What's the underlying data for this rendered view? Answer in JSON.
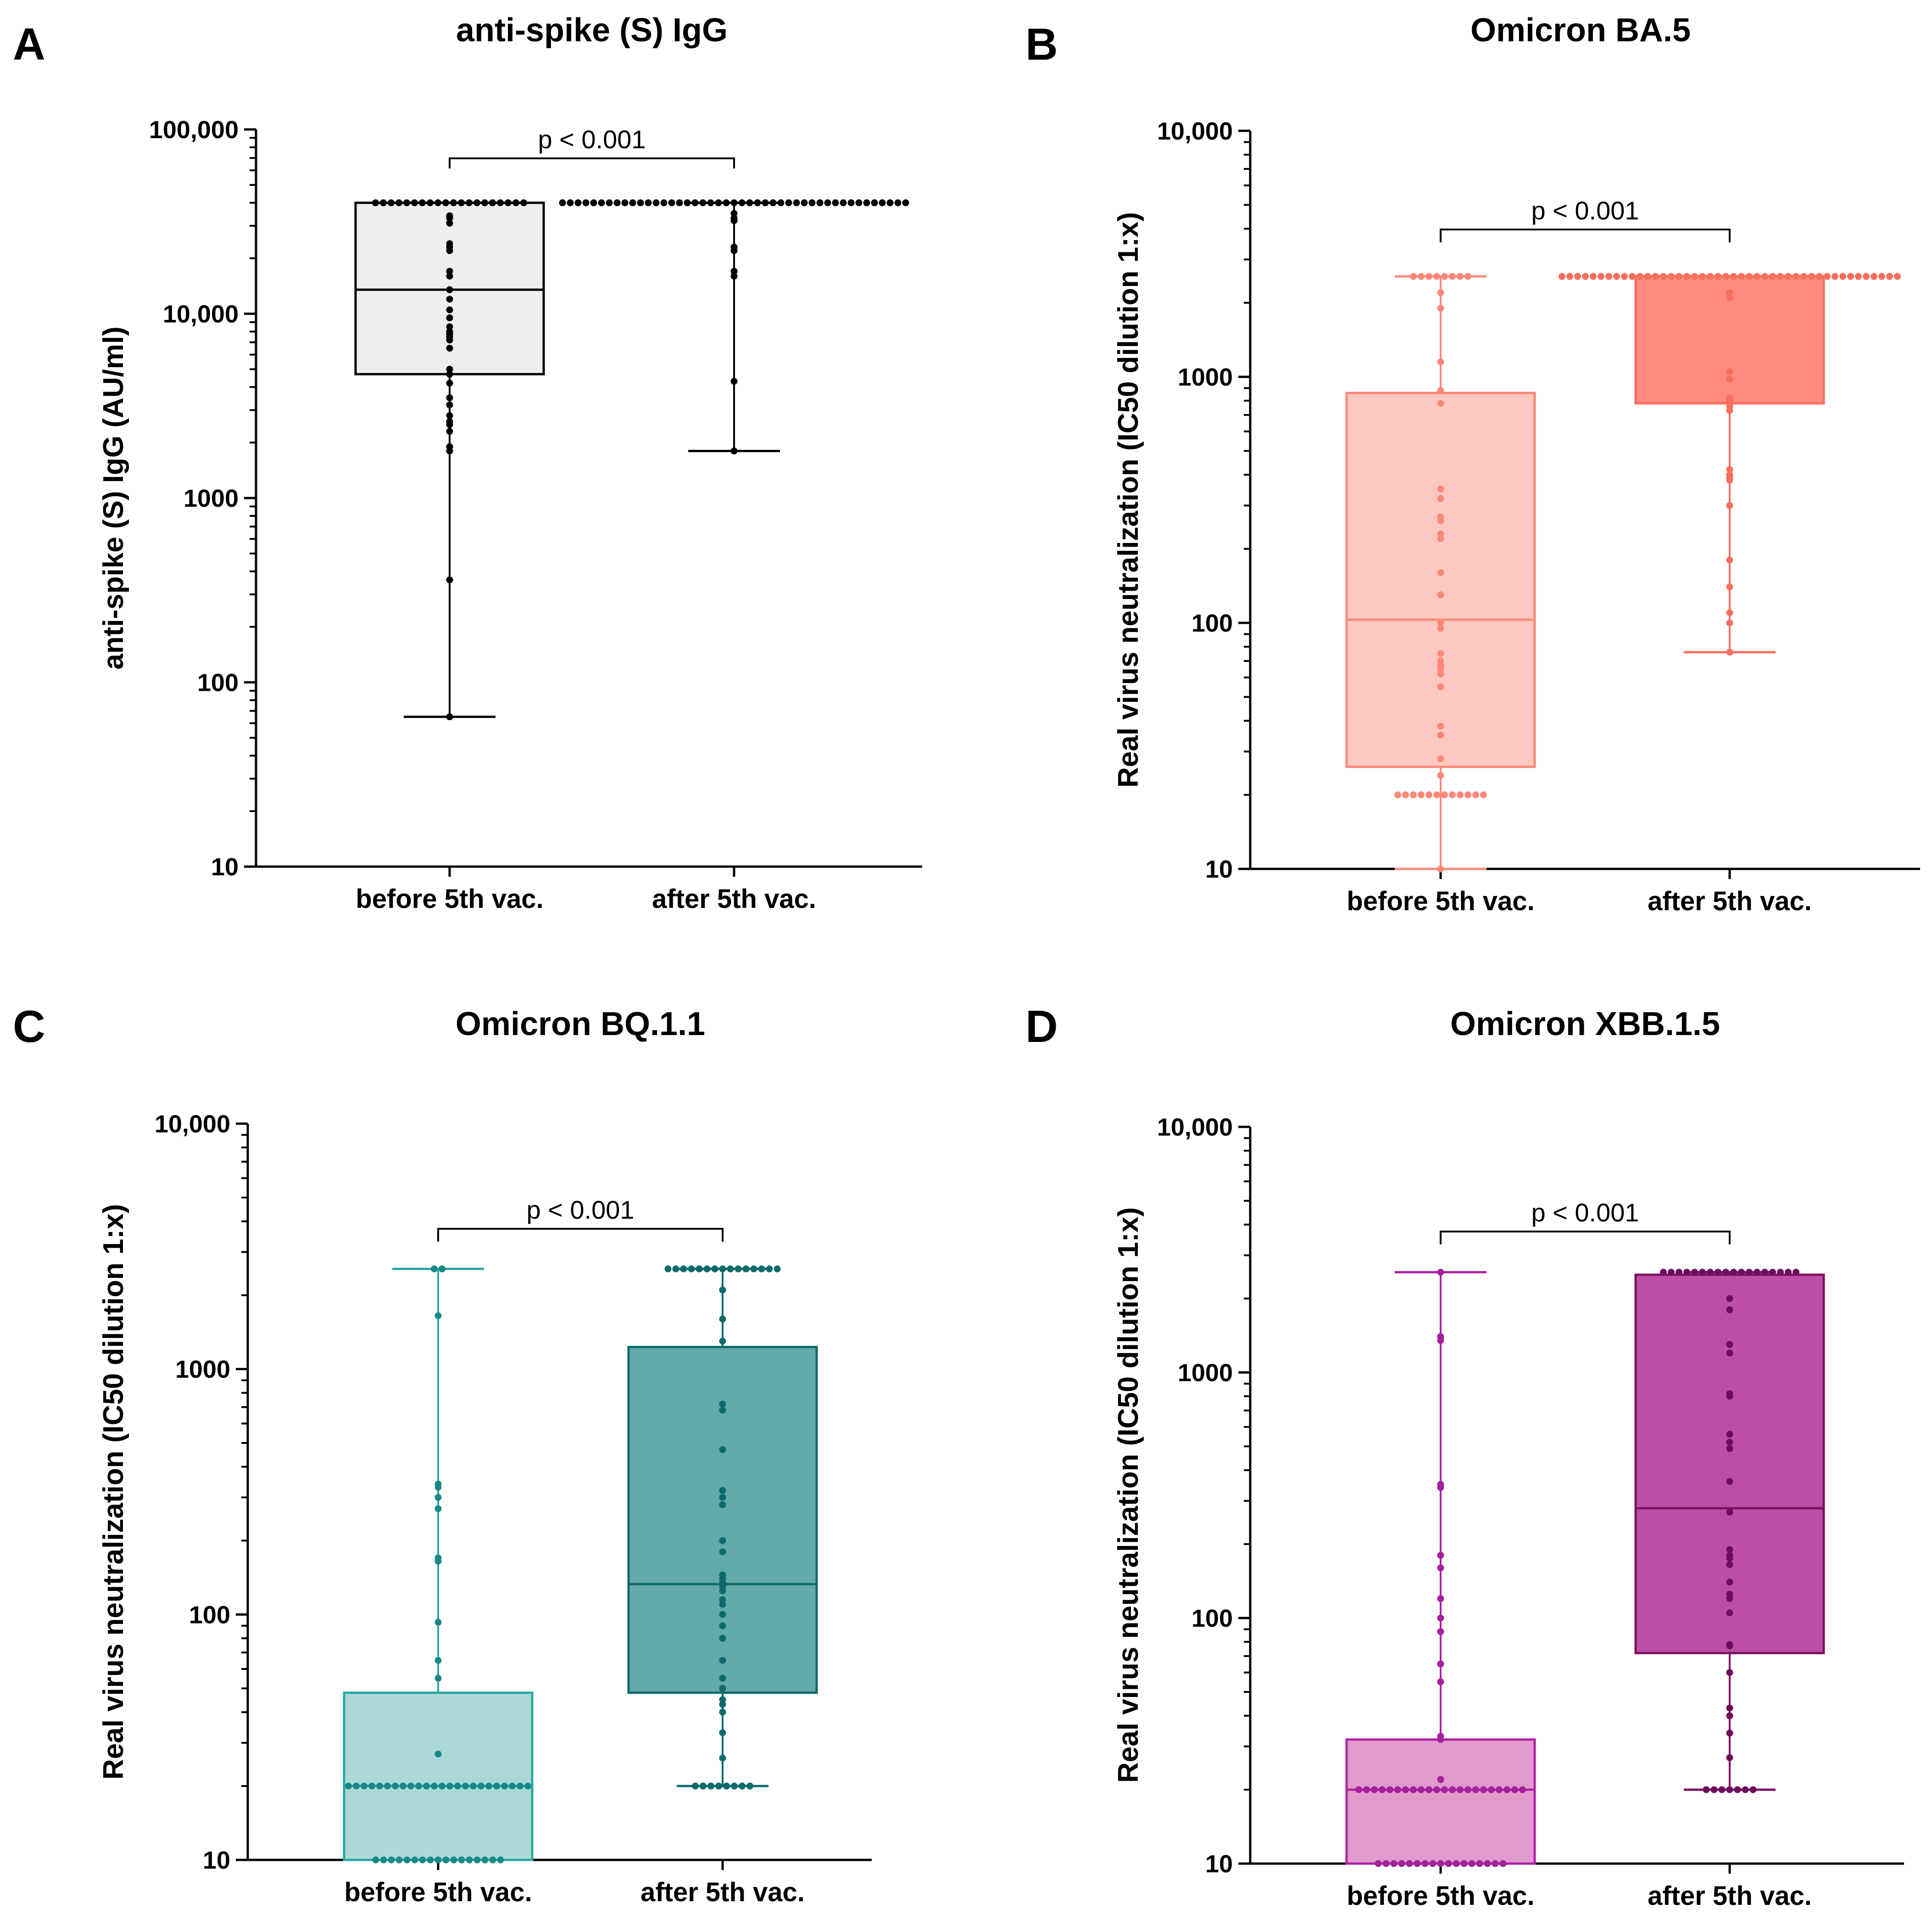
{
  "chart_data": [
    {
      "type": "box",
      "panel": "A",
      "title": "anti-spike (S) IgG",
      "ylabel": "anti-spike (S) IgG (AU/ml)",
      "xlabel": "",
      "yscale": "log",
      "ylim": [
        10,
        100000
      ],
      "yticks": [
        10,
        100,
        1000,
        10000,
        100000
      ],
      "ytick_labels": [
        "10",
        "100",
        "1000",
        "10,000",
        "100,000"
      ],
      "categories": [
        "before 5th vac.",
        "after 5th vac."
      ],
      "significance": "p < 0.001",
      "colors": {
        "box_fill": [
          "#eeeeee",
          "#eeeeee"
        ],
        "line": [
          "#000000",
          "#000000"
        ],
        "points": [
          "#000000",
          "#000000"
        ]
      },
      "boxes": [
        {
          "min": 65,
          "q1": 4700,
          "median": 13500,
          "q3": 40000,
          "max": 40000,
          "draw_box": true
        },
        {
          "min": 1800,
          "q1": 40000,
          "median": 40000,
          "q3": 40000,
          "max": 40000,
          "draw_box": false
        }
      ],
      "points": [
        [
          40000,
          40000,
          40000,
          40000,
          40000,
          40000,
          40000,
          40000,
          40000,
          40000,
          40000,
          40000,
          40000,
          40000,
          40000,
          40000,
          40000,
          40000,
          40000,
          40000,
          33000,
          34000,
          31000,
          24000,
          23000,
          22000,
          17000,
          16000,
          13500,
          12000,
          10500,
          9500,
          8500,
          8000,
          7800,
          7500,
          7200,
          6500,
          5000,
          4700,
          4200,
          3500,
          3200,
          2800,
          2600,
          2500,
          2300,
          1900,
          1800,
          360,
          65
        ],
        [
          40000,
          40000,
          40000,
          40000,
          40000,
          40000,
          40000,
          40000,
          40000,
          40000,
          40000,
          40000,
          40000,
          40000,
          40000,
          40000,
          40000,
          40000,
          40000,
          40000,
          40000,
          40000,
          40000,
          40000,
          40000,
          40000,
          40000,
          40000,
          40000,
          40000,
          40000,
          40000,
          40000,
          40000,
          40000,
          40000,
          40000,
          40000,
          40000,
          40000,
          40000,
          40000,
          40000,
          40000,
          40000,
          35000,
          33000,
          32000,
          23000,
          22000,
          17000,
          16000,
          4300,
          1800
        ]
      ]
    },
    {
      "type": "box",
      "panel": "B",
      "title": "Omicron BA.5",
      "ylabel": "Real virus neutralization (IC50 dilution 1:x)",
      "xlabel": "",
      "yscale": "log",
      "ylim": [
        10,
        10000
      ],
      "yticks": [
        10,
        100,
        1000,
        10000
      ],
      "ytick_labels": [
        "10",
        "100",
        "1000",
        "10,000"
      ],
      "categories": [
        "before 5th vac.",
        "after 5th vac."
      ],
      "significance": "p < 0.001",
      "colors": {
        "box_fill": [
          "#fdc8c0",
          "#ff8a7d"
        ],
        "line": [
          "#f98878",
          "#f86e60"
        ],
        "points": [
          "#f98878",
          "#f86e60"
        ]
      },
      "boxes": [
        {
          "min": 10,
          "q1": 26,
          "median": 103,
          "q3": 860,
          "max": 2560,
          "draw_box": true
        },
        {
          "min": 76,
          "q1": 780,
          "median": 2560,
          "q3": 2560,
          "max": 2560,
          "draw_box": true
        }
      ],
      "points": [
        [
          2560,
          2560,
          2560,
          2560,
          2560,
          2560,
          2560,
          2560,
          2200,
          1900,
          1150,
          880,
          780,
          350,
          320,
          270,
          260,
          230,
          220,
          160,
          130,
          100,
          95,
          75,
          70,
          67,
          65,
          62,
          55,
          38,
          35,
          28,
          24,
          20,
          20,
          20,
          20,
          20,
          20,
          20,
          20,
          20,
          20,
          20,
          20,
          10
        ],
        [
          2560,
          2560,
          2560,
          2560,
          2560,
          2560,
          2560,
          2560,
          2560,
          2560,
          2560,
          2560,
          2560,
          2560,
          2560,
          2560,
          2560,
          2560,
          2560,
          2560,
          2560,
          2560,
          2560,
          2560,
          2560,
          2560,
          2560,
          2560,
          2560,
          2560,
          2560,
          2560,
          2560,
          2560,
          2560,
          2560,
          2560,
          2560,
          2560,
          2560,
          2560,
          2560,
          2560,
          2560,
          2200,
          2100,
          1050,
          980,
          820,
          800,
          760,
          730,
          420,
          400,
          390,
          380,
          300,
          180,
          140,
          110,
          100,
          76
        ]
      ]
    },
    {
      "type": "box",
      "panel": "C",
      "title": "Omicron BQ.1.1",
      "ylabel": "Real virus neutralization (IC50 dilution 1:x)",
      "xlabel": "",
      "yscale": "log",
      "ylim": [
        10,
        10000
      ],
      "yticks": [
        10,
        100,
        1000,
        10000
      ],
      "ytick_labels": [
        "10",
        "100",
        "1000",
        "10,000"
      ],
      "categories": [
        "before 5th vac.",
        "after 5th vac."
      ],
      "significance": "p < 0.001",
      "colors": {
        "box_fill": [
          "#acd9d6",
          "#64aaa8"
        ],
        "line": [
          "#2aa9a5",
          "#0e6a6a"
        ],
        "points": [
          "#178a88",
          "#0e6a6a"
        ]
      },
      "boxes": [
        {
          "min": 10,
          "q1": 10,
          "median": 20,
          "q3": 48,
          "max": 2560,
          "draw_box": true
        },
        {
          "min": 20,
          "q1": 48,
          "median": 133,
          "q3": 1230,
          "max": 2560,
          "draw_box": true
        }
      ],
      "points": [
        [
          2560,
          2560,
          1650,
          340,
          330,
          300,
          270,
          170,
          165,
          93,
          65,
          55,
          27,
          20,
          20,
          20,
          20,
          20,
          20,
          20,
          20,
          20,
          20,
          20,
          20,
          20,
          20,
          20,
          20,
          20,
          20,
          20,
          20,
          20,
          20,
          20,
          20,
          10,
          10,
          10,
          10,
          10,
          10,
          10,
          10,
          10,
          10,
          10,
          10,
          10,
          10,
          10,
          10,
          10
        ],
        [
          2560,
          2560,
          2560,
          2560,
          2560,
          2560,
          2560,
          2560,
          2560,
          2560,
          2560,
          2560,
          2560,
          2560,
          2560,
          2100,
          1600,
          1300,
          720,
          680,
          470,
          320,
          300,
          280,
          200,
          180,
          145,
          140,
          135,
          130,
          125,
          115,
          110,
          100,
          90,
          80,
          65,
          55,
          50,
          45,
          43,
          40,
          33,
          26,
          20,
          20,
          20,
          20,
          20,
          20,
          20,
          20
        ]
      ]
    },
    {
      "type": "box",
      "panel": "D",
      "title": "Omicron XBB.1.5",
      "ylabel": "Real virus neutralization (IC50 dilution 1:x)",
      "xlabel": "",
      "yscale": "log",
      "ylim": [
        10,
        10000
      ],
      "yticks": [
        10,
        100,
        1000,
        10000
      ],
      "ytick_labels": [
        "10",
        "100",
        "1000",
        "10,000"
      ],
      "categories": [
        "before 5th vac.",
        "after 5th vac."
      ],
      "significance": "p < 0.001",
      "colors": {
        "box_fill": [
          "#e09acd",
          "#bd4ea6"
        ],
        "line": [
          "#ae22a4",
          "#7a1264"
        ],
        "points": [
          "#a5209b",
          "#6e0c5c"
        ]
      },
      "boxes": [
        {
          "min": 10,
          "q1": 10,
          "median": 20,
          "q3": 32,
          "max": 2560,
          "draw_box": true
        },
        {
          "min": 20,
          "q1": 72,
          "median": 280,
          "q3": 2500,
          "max": 2560,
          "draw_box": true
        }
      ],
      "points": [
        [
          2560,
          1400,
          1350,
          350,
          340,
          180,
          160,
          120,
          100,
          88,
          65,
          55,
          33,
          32,
          22,
          20,
          20,
          20,
          20,
          20,
          20,
          20,
          20,
          20,
          20,
          20,
          20,
          20,
          20,
          20,
          20,
          20,
          20,
          20,
          20,
          20,
          20,
          10,
          10,
          10,
          10,
          10,
          10,
          10,
          10,
          10,
          10,
          10,
          10,
          10,
          10,
          10,
          10,
          10
        ],
        [
          2560,
          2560,
          2560,
          2560,
          2560,
          2560,
          2560,
          2560,
          2560,
          2560,
          2560,
          2560,
          2560,
          2560,
          2560,
          2560,
          2560,
          2560,
          2000,
          1800,
          1300,
          1200,
          820,
          800,
          560,
          520,
          490,
          360,
          270,
          190,
          180,
          175,
          165,
          140,
          125,
          120,
          105,
          78,
          77,
          60,
          43,
          40,
          34,
          27,
          20,
          20,
          20,
          20,
          20,
          20,
          20
        ]
      ]
    }
  ]
}
